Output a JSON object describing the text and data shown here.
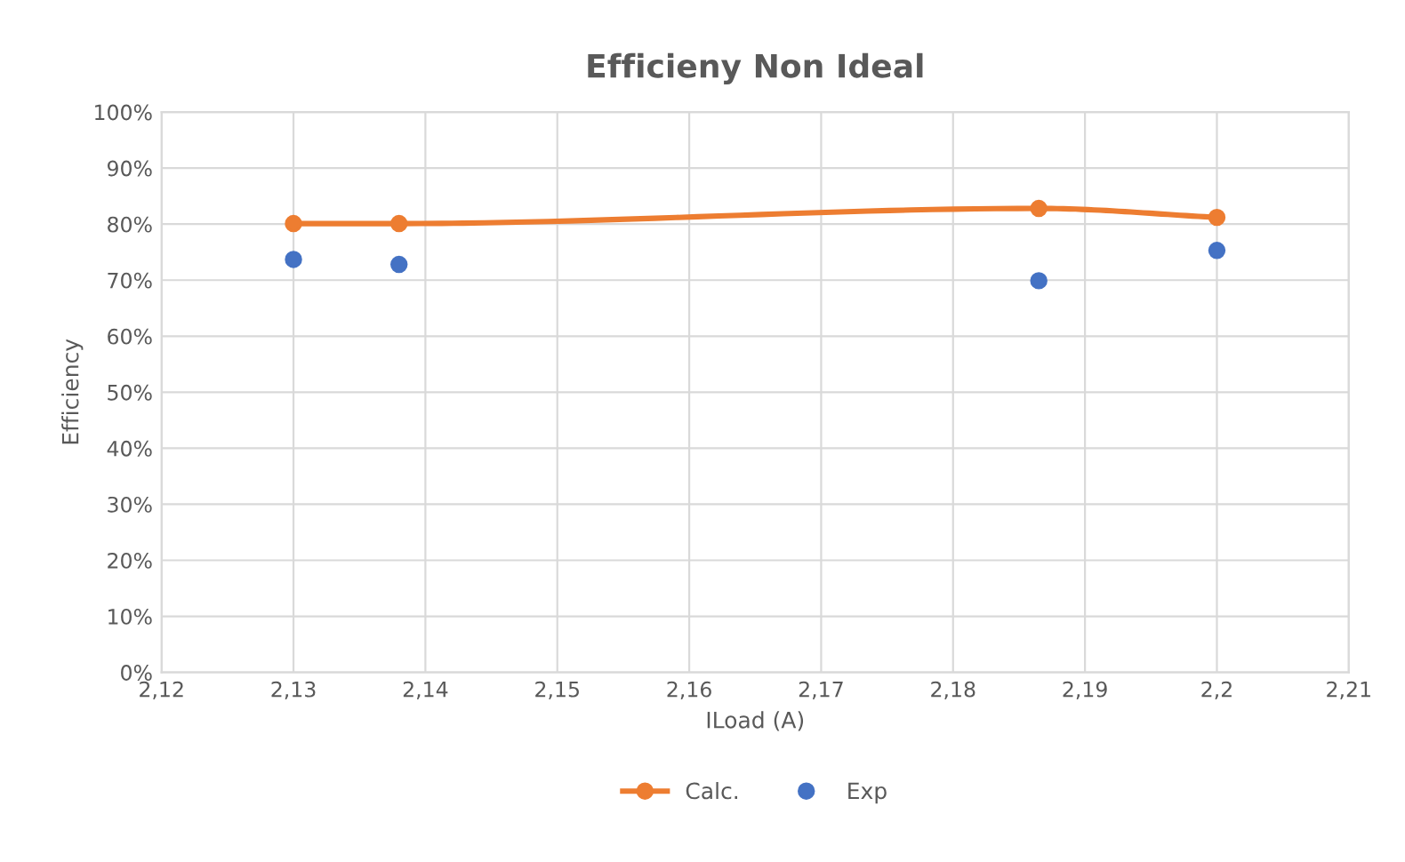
{
  "chart_data": {
    "type": "scatter",
    "title": "Efficieny Non Ideal",
    "xlabel": "ILoad (A)",
    "ylabel": "Efficiency",
    "x": [
      2.13,
      2.138,
      2.1865,
      2.2
    ],
    "series": [
      {
        "name": "Calc.",
        "type": "line",
        "color": "#ed7d31",
        "values": [
          80.1,
          80.1,
          82.8,
          81.2
        ],
        "marker": "circle"
      },
      {
        "name": "Exp",
        "color": "#4472c4",
        "values": [
          73.7,
          72.8,
          69.9,
          75.3
        ],
        "marker": "circle"
      }
    ],
    "xlim": [
      2.12,
      2.21
    ],
    "xticks": [
      {
        "value": 2.12,
        "label": "2,12"
      },
      {
        "value": 2.13,
        "label": "2,13"
      },
      {
        "value": 2.14,
        "label": "2,14"
      },
      {
        "value": 2.15,
        "label": "2,15"
      },
      {
        "value": 2.16,
        "label": "2,16"
      },
      {
        "value": 2.17,
        "label": "2,17"
      },
      {
        "value": 2.18,
        "label": "2,18"
      },
      {
        "value": 2.19,
        "label": "2,19"
      },
      {
        "value": 2.2,
        "label": "2,2"
      },
      {
        "value": 2.21,
        "label": "2,21"
      }
    ],
    "ylim": [
      0,
      100
    ],
    "yticks": [
      {
        "value": 0,
        "label": "0%"
      },
      {
        "value": 10,
        "label": "10%"
      },
      {
        "value": 20,
        "label": "20%"
      },
      {
        "value": 30,
        "label": "30%"
      },
      {
        "value": 40,
        "label": "40%"
      },
      {
        "value": 50,
        "label": "50%"
      },
      {
        "value": 60,
        "label": "60%"
      },
      {
        "value": 70,
        "label": "70%"
      },
      {
        "value": 80,
        "label": "80%"
      },
      {
        "value": 90,
        "label": "90%"
      },
      {
        "value": 100,
        "label": "100%"
      }
    ],
    "grid": true,
    "legend": "bottom"
  }
}
